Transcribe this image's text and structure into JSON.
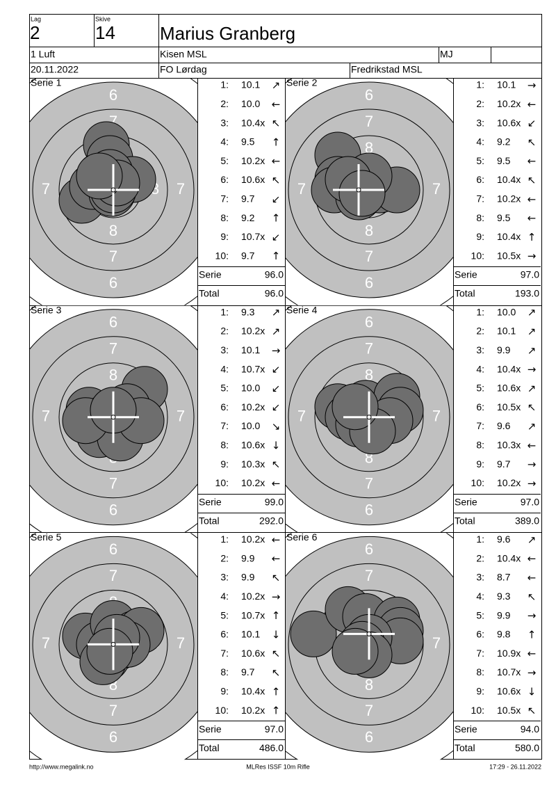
{
  "header": {
    "lag_label": "Lag",
    "lag": "2",
    "skive_label": "Skive",
    "skive": "14",
    "name": "Marius Granberg",
    "class": "1 Luft",
    "club": "Kisen MSL",
    "code": "MJ",
    "date": "20.11.2022",
    "event": "FO Lørdag",
    "venue": "Fredrikstad MSL"
  },
  "ring_labels": [
    "6",
    "7",
    "8"
  ],
  "series": [
    {
      "title": "Serie 1",
      "shots": [
        {
          "n": "1:",
          "score": "10.1",
          "dir": "↗"
        },
        {
          "n": "2:",
          "score": "10.0",
          "dir": "←"
        },
        {
          "n": "3:",
          "score": "10.4x",
          "dir": "↖"
        },
        {
          "n": "4:",
          "score": "9.5",
          "dir": "↑"
        },
        {
          "n": "5:",
          "score": "10.2x",
          "dir": "←"
        },
        {
          "n": "6:",
          "score": "10.6x",
          "dir": "↖"
        },
        {
          "n": "7:",
          "score": "9.7",
          "dir": "↙"
        },
        {
          "n": "8:",
          "score": "9.2",
          "dir": "↑"
        },
        {
          "n": "9:",
          "score": "10.7x",
          "dir": "↙"
        },
        {
          "n": "10:",
          "score": "9.7",
          "dir": "↑"
        }
      ],
      "serie_label": "Serie",
      "serie": "96.0",
      "total_label": "Total",
      "total": "96.0"
    },
    {
      "title": "Serie 2",
      "shots": [
        {
          "n": "1:",
          "score": "10.1",
          "dir": "→"
        },
        {
          "n": "2:",
          "score": "10.2x",
          "dir": "←"
        },
        {
          "n": "3:",
          "score": "10.6x",
          "dir": "↙"
        },
        {
          "n": "4:",
          "score": "9.2",
          "dir": "↖"
        },
        {
          "n": "5:",
          "score": "9.5",
          "dir": "←"
        },
        {
          "n": "6:",
          "score": "10.4x",
          "dir": "↖"
        },
        {
          "n": "7:",
          "score": "10.2x",
          "dir": "←"
        },
        {
          "n": "8:",
          "score": "9.5",
          "dir": "←"
        },
        {
          "n": "9:",
          "score": "10.4x",
          "dir": "↑"
        },
        {
          "n": "10:",
          "score": "10.5x",
          "dir": "→"
        }
      ],
      "serie_label": "Serie",
      "serie": "97.0",
      "total_label": "Total",
      "total": "193.0"
    },
    {
      "title": "Serie 3",
      "shots": [
        {
          "n": "1:",
          "score": "9.3",
          "dir": "↗"
        },
        {
          "n": "2:",
          "score": "10.2x",
          "dir": "↗"
        },
        {
          "n": "3:",
          "score": "10.1",
          "dir": "→"
        },
        {
          "n": "4:",
          "score": "10.7x",
          "dir": "↙"
        },
        {
          "n": "5:",
          "score": "10.0",
          "dir": "↙"
        },
        {
          "n": "6:",
          "score": "10.2x",
          "dir": "↙"
        },
        {
          "n": "7:",
          "score": "10.0",
          "dir": "↘"
        },
        {
          "n": "8:",
          "score": "10.6x",
          "dir": "↓"
        },
        {
          "n": "9:",
          "score": "10.3x",
          "dir": "↖"
        },
        {
          "n": "10:",
          "score": "10.2x",
          "dir": "←"
        }
      ],
      "serie_label": "Serie",
      "serie": "99.0",
      "total_label": "Total",
      "total": "292.0"
    },
    {
      "title": "Serie 4",
      "shots": [
        {
          "n": "1:",
          "score": "10.0",
          "dir": "↗"
        },
        {
          "n": "2:",
          "score": "10.1",
          "dir": "↗"
        },
        {
          "n": "3:",
          "score": "9.9",
          "dir": "↗"
        },
        {
          "n": "4:",
          "score": "10.4x",
          "dir": "→"
        },
        {
          "n": "5:",
          "score": "10.6x",
          "dir": "↗"
        },
        {
          "n": "6:",
          "score": "10.5x",
          "dir": "↖"
        },
        {
          "n": "7:",
          "score": "9.6",
          "dir": "↗"
        },
        {
          "n": "8:",
          "score": "10.3x",
          "dir": "←"
        },
        {
          "n": "9:",
          "score": "9.7",
          "dir": "→"
        },
        {
          "n": "10:",
          "score": "10.2x",
          "dir": "→"
        }
      ],
      "serie_label": "Serie",
      "serie": "97.0",
      "total_label": "Total",
      "total": "389.0"
    },
    {
      "title": "Serie 5",
      "shots": [
        {
          "n": "1:",
          "score": "10.2x",
          "dir": "←"
        },
        {
          "n": "2:",
          "score": "9.9",
          "dir": "←"
        },
        {
          "n": "3:",
          "score": "9.9",
          "dir": "↖"
        },
        {
          "n": "4:",
          "score": "10.2x",
          "dir": "→"
        },
        {
          "n": "5:",
          "score": "10.7x",
          "dir": "↑"
        },
        {
          "n": "6:",
          "score": "10.1",
          "dir": "↓"
        },
        {
          "n": "7:",
          "score": "10.6x",
          "dir": "↖"
        },
        {
          "n": "8:",
          "score": "9.7",
          "dir": "↖"
        },
        {
          "n": "9:",
          "score": "10.4x",
          "dir": "↑"
        },
        {
          "n": "10:",
          "score": "10.2x",
          "dir": "↑"
        }
      ],
      "serie_label": "Serie",
      "serie": "97.0",
      "total_label": "Total",
      "total": "486.0"
    },
    {
      "title": "Serie 6",
      "shots": [
        {
          "n": "1:",
          "score": "9.6",
          "dir": "↗"
        },
        {
          "n": "2:",
          "score": "10.4x",
          "dir": "←"
        },
        {
          "n": "3:",
          "score": "8.7",
          "dir": "←"
        },
        {
          "n": "4:",
          "score": "9.3",
          "dir": "↖"
        },
        {
          "n": "5:",
          "score": "9.9",
          "dir": "→"
        },
        {
          "n": "6:",
          "score": "9.8",
          "dir": "↑"
        },
        {
          "n": "7:",
          "score": "10.9x",
          "dir": "←"
        },
        {
          "n": "8:",
          "score": "10.7x",
          "dir": "→"
        },
        {
          "n": "9:",
          "score": "10.6x",
          "dir": "↓"
        },
        {
          "n": "10:",
          "score": "10.5x",
          "dir": "↖"
        }
      ],
      "serie_label": "Serie",
      "serie": "94.0",
      "total_label": "Total",
      "total": "580.0"
    }
  ],
  "footer": {
    "left": "http://www.megalink.no",
    "center": "MLRes ISSF 10m Rifle",
    "right": "17:29 - 26.11.2022"
  }
}
